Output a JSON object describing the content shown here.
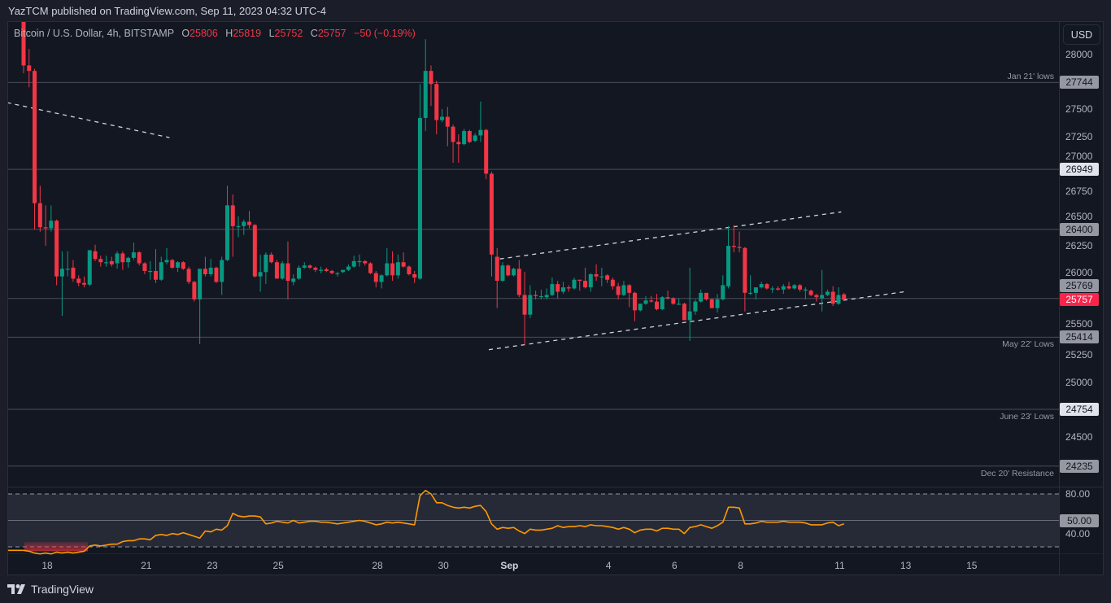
{
  "header": {
    "published": "YazTCM published on TradingView.com, Sep 11, 2023 04:32 UTC-4"
  },
  "legend": {
    "symbol": "Bitcoin / U.S. Dollar, 4h, BITSTAMP",
    "o_label": "O",
    "o": "25806",
    "h_label": "H",
    "h": "25819",
    "l_label": "L",
    "l": "25752",
    "c_label": "C",
    "c": "25757",
    "change": "−50 (−0.19%)"
  },
  "currency_button": "USD",
  "footer": {
    "brand": "TradingView"
  },
  "colors": {
    "up": "#089981",
    "down": "#f23645",
    "rsi": "#ff9800",
    "level_line": "#4a4e5a",
    "trend_line": "#d1d4dc"
  },
  "chart_data": [
    {
      "type": "candlestick",
      "title": "Bitcoin / U.S. Dollar, 4h, BITSTAMP",
      "interval": "4h",
      "x_start": "2023-08-17",
      "ylim": [
        23900,
        28300
      ],
      "y_ticks": [
        28000,
        27500,
        27250,
        27000,
        26750,
        26500,
        26250,
        26000,
        25500,
        25250,
        25000,
        24500
      ],
      "x_ticks": [
        {
          "label": "18",
          "date": "2023-08-18"
        },
        {
          "label": "21",
          "date": "2023-08-21"
        },
        {
          "label": "23",
          "date": "2023-08-23"
        },
        {
          "label": "25",
          "date": "2023-08-25"
        },
        {
          "label": "28",
          "date": "2023-08-28"
        },
        {
          "label": "30",
          "date": "2023-08-30"
        },
        {
          "label": "Sep",
          "date": "2023-09-01",
          "bold": true
        },
        {
          "label": "4",
          "date": "2023-09-04"
        },
        {
          "label": "6",
          "date": "2023-09-06"
        },
        {
          "label": "8",
          "date": "2023-09-08"
        },
        {
          "label": "11",
          "date": "2023-09-11"
        },
        {
          "label": "13",
          "date": "2023-09-13"
        },
        {
          "label": "15",
          "date": "2023-09-15"
        }
      ],
      "levels": [
        {
          "value": 27744,
          "label": "Jan 21' lows",
          "label_pos": "above",
          "badge_bg": "#9598a1",
          "badge_fg": "#131722"
        },
        {
          "value": 26949,
          "label": "",
          "badge_bg": "#e0e3eb",
          "badge_fg": "#131722"
        },
        {
          "value": 26400,
          "label": "",
          "badge_bg": "#9598a1",
          "badge_fg": "#131722"
        },
        {
          "value": 25769,
          "label": "",
          "badge_bg": "#9598a1",
          "badge_fg": "#131722"
        },
        {
          "value": 25757,
          "label": "",
          "badge_bg": "#f7254b",
          "badge_fg": "#ffffff",
          "no_line": true
        },
        {
          "value": 25414,
          "label": "May 22' Lows",
          "label_pos": "below",
          "badge_bg": "#9598a1",
          "badge_fg": "#131722"
        },
        {
          "value": 24754,
          "label": "June 23' Lows",
          "label_pos": "below",
          "badge_bg": "#e0e3eb",
          "badge_fg": "#131722"
        },
        {
          "value": 24235,
          "label": "Dec 20' Resistance",
          "label_pos": "below",
          "badge_bg": "#9598a1",
          "badge_fg": "#131722"
        }
      ],
      "trend_lines": [
        {
          "from": [
            -3,
            27560
          ],
          "to": [
            26.5,
            27240
          ]
        },
        {
          "from": [
            86.5,
            26130
          ],
          "to": [
            148.5,
            26560
          ]
        },
        {
          "from": [
            84.5,
            25300
          ],
          "to": [
            160,
            25830
          ]
        }
      ],
      "candles": [
        [
          28300,
          28320,
          27830,
          27900
        ],
        [
          27900,
          28050,
          27700,
          27850
        ],
        [
          27850,
          27870,
          26400,
          26640
        ],
        [
          26640,
          26800,
          26380,
          26420
        ],
        [
          26420,
          26620,
          26250,
          26410
        ],
        [
          26410,
          26620,
          26380,
          26480
        ],
        [
          26480,
          26490,
          25890,
          25970
        ],
        [
          25970,
          26200,
          25610,
          26040
        ],
        [
          26040,
          26200,
          25970,
          26040
        ],
        [
          26050,
          26120,
          25920,
          25950
        ],
        [
          25950,
          25980,
          25880,
          25910
        ],
        [
          25910,
          25970,
          25870,
          25895
        ],
        [
          25895,
          26210,
          25880,
          26210
        ],
        [
          26200,
          26260,
          26110,
          26130
        ],
        [
          26130,
          26160,
          26060,
          26100
        ],
        [
          26100,
          26160,
          26060,
          26100
        ],
        [
          26110,
          26150,
          26060,
          26080
        ],
        [
          26090,
          26200,
          26040,
          26180
        ],
        [
          26180,
          26200,
          26030,
          26100
        ],
        [
          26100,
          26150,
          26050,
          26140
        ],
        [
          26140,
          26280,
          26120,
          26190
        ],
        [
          26190,
          26200,
          26070,
          26090
        ],
        [
          26090,
          26100,
          25990,
          26020
        ],
        [
          26020,
          26110,
          25940,
          26020
        ],
        [
          26020,
          26220,
          25910,
          25940
        ],
        [
          25940,
          26150,
          25930,
          26100
        ],
        [
          26100,
          26230,
          26080,
          26120
        ],
        [
          26120,
          26130,
          26040,
          26050
        ],
        [
          26050,
          26110,
          26010,
          26100
        ],
        [
          26100,
          26110,
          26030,
          26040
        ],
        [
          26040,
          26060,
          25900,
          25920
        ],
        [
          25920,
          25930,
          25740,
          25760
        ],
        [
          25760,
          26040,
          25350,
          26040
        ],
        [
          26040,
          26150,
          25970,
          25990
        ],
        [
          25990,
          26130,
          25970,
          26050
        ],
        [
          26050,
          26060,
          25910,
          25920
        ],
        [
          25920,
          26150,
          25800,
          26120
        ],
        [
          26120,
          26800,
          26110,
          26620
        ],
        [
          26620,
          26720,
          26150,
          26430
        ],
        [
          26430,
          26520,
          26330,
          26430
        ],
        [
          26430,
          26490,
          26350,
          26470
        ],
        [
          26470,
          26570,
          26410,
          26440
        ],
        [
          26440,
          26450,
          25960,
          25970
        ],
        [
          25970,
          26170,
          25830,
          26010
        ],
        [
          26010,
          26190,
          25900,
          26170
        ],
        [
          26170,
          26190,
          26090,
          26100
        ],
        [
          26100,
          26120,
          25950,
          25950
        ],
        [
          25950,
          26110,
          25940,
          26090
        ],
        [
          26090,
          26290,
          25760,
          25930
        ],
        [
          25920,
          25990,
          25890,
          25950
        ],
        [
          25950,
          26070,
          25940,
          26050
        ],
        [
          26050,
          26100,
          26040,
          26070
        ],
        [
          26070,
          26080,
          26040,
          26050
        ],
        [
          26050,
          26060,
          26010,
          26030
        ],
        [
          26030,
          26060,
          26000,
          26030
        ],
        [
          26035,
          26050,
          26010,
          26020
        ],
        [
          26020,
          26030,
          25990,
          26000
        ],
        [
          26000,
          26010,
          25970,
          26000
        ],
        [
          26010,
          26030,
          26000,
          26030
        ],
        [
          26030,
          26080,
          26020,
          26060
        ],
        [
          26060,
          26160,
          26050,
          26110
        ],
        [
          26110,
          26170,
          26060,
          26110
        ],
        [
          26110,
          26120,
          26070,
          26090
        ],
        [
          26090,
          26100,
          25990,
          26000
        ],
        [
          26000,
          26020,
          25870,
          25920
        ],
        [
          25920,
          25990,
          25860,
          25980
        ],
        [
          25980,
          26230,
          25970,
          26090
        ],
        [
          26090,
          26200,
          25930,
          25980
        ],
        [
          25980,
          26170,
          25950,
          26100
        ],
        [
          26100,
          26190,
          26050,
          26060
        ],
        [
          26060,
          26070,
          25980,
          25990
        ],
        [
          25990,
          26020,
          25910,
          25960
        ],
        [
          25950,
          27730,
          25940,
          27420
        ],
        [
          27420,
          28140,
          27300,
          27850
        ],
        [
          27850,
          27900,
          27530,
          27730
        ],
        [
          27730,
          27760,
          27270,
          27400
        ],
        [
          27400,
          27500,
          27380,
          27430
        ],
        [
          27430,
          27520,
          27160,
          27340
        ],
        [
          27340,
          27360,
          27010,
          27200
        ],
        [
          27200,
          27270,
          27010,
          27180
        ],
        [
          27180,
          27320,
          27170,
          27300
        ],
        [
          27300,
          27310,
          27190,
          27200
        ],
        [
          27210,
          27280,
          27200,
          27260
        ],
        [
          27260,
          27570,
          27200,
          27310
        ],
        [
          27310,
          27320,
          26860,
          26910
        ],
        [
          26910,
          26930,
          25970,
          26170
        ],
        [
          26150,
          26230,
          25680,
          25930
        ],
        [
          25930,
          26100,
          25920,
          26070
        ],
        [
          26070,
          26080,
          25970,
          25980
        ],
        [
          25980,
          26050,
          25970,
          26040
        ],
        [
          26040,
          26120,
          25780,
          25800
        ],
        [
          25800,
          26010,
          25340,
          25620
        ],
        [
          25620,
          25890,
          25590,
          25800
        ],
        [
          25800,
          25840,
          25760,
          25790
        ],
        [
          25790,
          25850,
          25760,
          25790
        ],
        [
          25780,
          25860,
          25760,
          25800
        ],
        [
          25800,
          25960,
          25790,
          25900
        ],
        [
          25900,
          25930,
          25770,
          25830
        ],
        [
          25830,
          25920,
          25810,
          25870
        ],
        [
          25870,
          25890,
          25830,
          25860
        ],
        [
          25860,
          25960,
          25850,
          25940
        ],
        [
          25940,
          25940,
          25840,
          25930
        ],
        [
          25930,
          26050,
          25860,
          25870
        ],
        [
          25870,
          26000,
          25830,
          25990
        ],
        [
          25990,
          26080,
          25930,
          25970
        ],
        [
          25970,
          26050,
          25880,
          25970
        ],
        [
          25980,
          25990,
          25910,
          25940
        ],
        [
          25940,
          25960,
          25850,
          25880
        ],
        [
          25880,
          25910,
          25760,
          25800
        ],
        [
          25800,
          25930,
          25790,
          25890
        ],
        [
          25890,
          25900,
          25690,
          25820
        ],
        [
          25820,
          25830,
          25560,
          25660
        ],
        [
          25660,
          25720,
          25650,
          25720
        ],
        [
          25720,
          25790,
          25710,
          25750
        ],
        [
          25750,
          25790,
          25730,
          25740
        ],
        [
          25740,
          25810,
          25660,
          25670
        ],
        [
          25670,
          25790,
          25660,
          25780
        ],
        [
          25780,
          25840,
          25760,
          25770
        ],
        [
          25770,
          25780,
          25710,
          25720
        ],
        [
          25720,
          25770,
          25710,
          25720
        ],
        [
          25720,
          25730,
          25570,
          25570
        ],
        [
          25570,
          26050,
          25380,
          25650
        ],
        [
          25650,
          25760,
          25620,
          25740
        ],
        [
          25740,
          25850,
          25730,
          25820
        ],
        [
          25820,
          25820,
          25750,
          25760
        ],
        [
          25760,
          25770,
          25680,
          25680
        ],
        [
          25680,
          25810,
          25640,
          25760
        ],
        [
          25760,
          25980,
          25750,
          25890
        ],
        [
          25880,
          26430,
          25860,
          26250
        ],
        [
          26250,
          26440,
          26190,
          26240
        ],
        [
          26240,
          26380,
          26190,
          26230
        ],
        [
          26230,
          26240,
          25650,
          25820
        ],
        [
          25820,
          25980,
          25800,
          25820
        ],
        [
          25820,
          25860,
          25760,
          25870
        ],
        [
          25870,
          25920,
          25860,
          25900
        ],
        [
          25900,
          25910,
          25850,
          25860
        ],
        [
          25860,
          25880,
          25820,
          25860
        ],
        [
          25860,
          25880,
          25840,
          25850
        ],
        [
          25850,
          25900,
          25810,
          25880
        ],
        [
          25880,
          25920,
          25850,
          25860
        ],
        [
          25860,
          25900,
          25850,
          25890
        ],
        [
          25890,
          25900,
          25830,
          25850
        ],
        [
          25850,
          25870,
          25760,
          25850
        ],
        [
          25840,
          25850,
          25790,
          25800
        ],
        [
          25800,
          25810,
          25740,
          25780
        ],
        [
          25770,
          26030,
          25650,
          25800
        ],
        [
          25800,
          25850,
          25790,
          25830
        ],
        [
          25830,
          25880,
          25700,
          25720
        ],
        [
          25720,
          25870,
          25710,
          25800
        ],
        [
          25806,
          25819,
          25752,
          25757
        ]
      ]
    },
    {
      "type": "line",
      "indicator": "RSI",
      "ylim": [
        12,
        86
      ],
      "bands": [
        80,
        20
      ],
      "midline": 50,
      "y_ticks": [
        {
          "value": 80,
          "label": "80.00"
        },
        {
          "value": 40,
          "label": "40.00"
        }
      ],
      "badge": {
        "value": 50,
        "label": "50.00"
      },
      "values": [
        16,
        15,
        13,
        12,
        13,
        12,
        14,
        13,
        14,
        13,
        14,
        15,
        21,
        22,
        21,
        22,
        23,
        23,
        26,
        27,
        27,
        29,
        29,
        28,
        33,
        34,
        33,
        35,
        34,
        36,
        34,
        32,
        30,
        38,
        37,
        40,
        39,
        44,
        58,
        55,
        54,
        55,
        55,
        54,
        46,
        47,
        49,
        48,
        47,
        50,
        47,
        48,
        49,
        49,
        48,
        48,
        47,
        46,
        47,
        48,
        49,
        50,
        49,
        47,
        45,
        46,
        48,
        47,
        48,
        47,
        46,
        45,
        78,
        84,
        80,
        70,
        70,
        67,
        65,
        64,
        65,
        64,
        66,
        67,
        60,
        46,
        40,
        42,
        41,
        42,
        38,
        35,
        40,
        39,
        39,
        40,
        41,
        44,
        42,
        43,
        43,
        44,
        43,
        45,
        44,
        44,
        43,
        42,
        40,
        42,
        40,
        36,
        39,
        40,
        40,
        38,
        41,
        41,
        40,
        40,
        35,
        42,
        43,
        45,
        43,
        41,
        44,
        48,
        65,
        65,
        64,
        46,
        46,
        47,
        49,
        48,
        48,
        48,
        49,
        48,
        48,
        48,
        47,
        45,
        45,
        45,
        47,
        48,
        44,
        46
      ]
    }
  ]
}
